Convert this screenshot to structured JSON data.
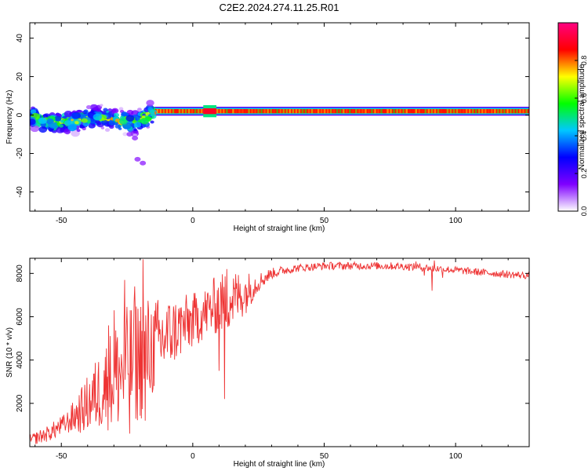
{
  "title": "C2E2.2024.274.11.25.R01",
  "colors": {
    "signal_line": "#ee3333",
    "signal_fill": "#e8202a",
    "signal_edge": "#55ee33",
    "frame": "#000000"
  },
  "colorbar": {
    "label": "Normalized spectral amplitude",
    "ticks": [
      "0.0",
      "0.2",
      "0.4",
      "0.6",
      "0.8"
    ],
    "tick_values": [
      0.0,
      0.2,
      0.4,
      0.6,
      0.8
    ],
    "range": [
      0,
      1
    ],
    "colormap": [
      "#ffffff",
      "#7f00ff",
      "#0000ff",
      "#00c8ff",
      "#00ff00",
      "#ffff00",
      "#ff0000",
      "#ff0080"
    ]
  },
  "chart_data": [
    {
      "type": "heatmap",
      "xlabel": "Height of straight line (km)",
      "ylabel": "Frequency (Hz)",
      "xlim": [
        -62,
        128
      ],
      "ylim": [
        -50,
        48
      ],
      "xticks": [
        -50,
        0,
        50,
        100
      ],
      "xtick_labels": [
        "-50",
        "0",
        "50",
        "100"
      ],
      "yticks": [
        -40,
        -20,
        0,
        20,
        40
      ],
      "ytick_labels": [
        "-40",
        "-20",
        "0",
        "20",
        "40"
      ],
      "band": {
        "x_start": -15,
        "x_end": 128,
        "freq_center": 2,
        "freq_width": 3,
        "amplitude": 0.85,
        "bright_segment": [
          4,
          9
        ]
      },
      "scatter_region": {
        "x_start": -62,
        "x_end": -15,
        "center_freq": [
          [
            -62,
            -1
          ],
          [
            -55,
            -4
          ],
          [
            -45,
            -3
          ],
          [
            -35,
            -1
          ],
          [
            -28,
            -3
          ],
          [
            -22,
            -4
          ],
          [
            -18,
            -1
          ],
          [
            -15,
            1
          ]
        ],
        "spread": 5,
        "tail": [
          [
            -24,
            -10
          ],
          [
            -22,
            -12
          ],
          [
            -21,
            -23
          ],
          [
            -19,
            -25
          ]
        ]
      }
    },
    {
      "type": "line",
      "xlabel": "Height of straight line (km)",
      "ylabel": "SNR (10 * v/v)",
      "xlim": [
        -62,
        128
      ],
      "ylim": [
        0,
        8700
      ],
      "xticks": [
        -50,
        0,
        50,
        100
      ],
      "xtick_labels": [
        "-50",
        "0",
        "50",
        "100"
      ],
      "yticks": [
        2000,
        4000,
        6000,
        8000
      ],
      "ytick_labels": [
        "2000",
        "4000",
        "6000",
        "8000"
      ],
      "series": [
        {
          "envelope": [
            [
              -62,
              300
            ],
            [
              -55,
              600
            ],
            [
              -48,
              1100
            ],
            [
              -42,
              1700
            ],
            [
              -36,
              2500
            ],
            [
              -30,
              3200
            ],
            [
              -25,
              3700
            ],
            [
              -20,
              4100
            ],
            [
              -15,
              4600
            ],
            [
              -10,
              5100
            ],
            [
              -5,
              5500
            ],
            [
              0,
              5800
            ],
            [
              5,
              6200
            ],
            [
              10,
              6600
            ],
            [
              15,
              6800
            ],
            [
              20,
              7100
            ],
            [
              25,
              7600
            ],
            [
              30,
              8000
            ],
            [
              35,
              8150
            ],
            [
              40,
              8250
            ],
            [
              50,
              8350
            ],
            [
              60,
              8350
            ],
            [
              70,
              8350
            ],
            [
              80,
              8330
            ],
            [
              90,
              8250
            ],
            [
              100,
              8150
            ],
            [
              110,
              8050
            ],
            [
              120,
              7950
            ],
            [
              128,
              7900
            ]
          ],
          "noise": [
            [
              -62,
              250
            ],
            [
              -48,
              500
            ],
            [
              -42,
              1100
            ],
            [
              -35,
              1900
            ],
            [
              -28,
              2700
            ],
            [
              -20,
              3000
            ],
            [
              -15,
              2300
            ],
            [
              -8,
              1600
            ],
            [
              0,
              1300
            ],
            [
              5,
              1200
            ],
            [
              10,
              1400
            ],
            [
              15,
              1400
            ],
            [
              20,
              1000
            ],
            [
              25,
              450
            ],
            [
              30,
              250
            ],
            [
              40,
              180
            ],
            [
              128,
              170
            ]
          ],
          "spikes": [
            [
              -19,
              8650
            ],
            [
              -26,
              7700
            ],
            [
              -22,
              7400
            ],
            [
              -30,
              6300
            ],
            [
              -32,
              5600
            ],
            [
              8,
              7800
            ],
            [
              13,
              8200
            ],
            [
              12,
              2200
            ],
            [
              10,
              3500
            ],
            [
              -18,
              1200
            ],
            [
              -24,
              600
            ],
            [
              91,
              7200
            ],
            [
              92,
              8600
            ],
            [
              88,
              7900
            ],
            [
              95,
              7800
            ],
            [
              85,
              8550
            ]
          ]
        }
      ]
    }
  ]
}
